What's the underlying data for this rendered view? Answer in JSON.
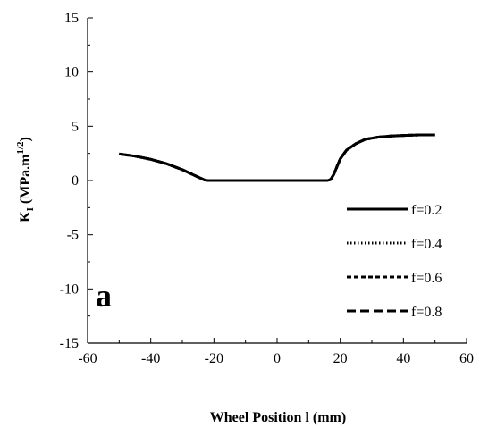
{
  "chart_data": {
    "type": "line",
    "title": "",
    "panel_label": "a",
    "xlabel": "Wheel Position l (mm)",
    "ylabel": {
      "main": "K",
      "sub": "I",
      "unit_prefix": " (MPa.m",
      "unit_sup": "1/2",
      "unit_suffix": ")"
    },
    "xlim": [
      -60,
      60
    ],
    "ylim": [
      -15,
      15
    ],
    "xticks": [
      -60,
      -40,
      -20,
      0,
      20,
      40,
      60
    ],
    "yticks": [
      -15,
      -10,
      -5,
      0,
      5,
      10,
      15
    ],
    "grid": false,
    "legend_position": "lower-right",
    "series": [
      {
        "name": "f=0.2",
        "dash": "solid",
        "x": [
          -50,
          -45,
          -40,
          -35,
          -30,
          -26,
          -23,
          -22,
          -20,
          -10,
          0,
          10,
          16,
          17,
          18,
          19,
          20,
          22,
          25,
          28,
          32,
          36,
          40,
          45,
          50
        ],
        "y": [
          2.45,
          2.25,
          1.95,
          1.55,
          1.0,
          0.45,
          0.05,
          0.0,
          0.0,
          0.0,
          0.0,
          0.0,
          0.0,
          0.1,
          0.6,
          1.3,
          2.0,
          2.8,
          3.4,
          3.8,
          4.0,
          4.1,
          4.15,
          4.2,
          4.2
        ]
      },
      {
        "name": "f=0.4",
        "dash": "dotted",
        "x": [
          -50,
          -45,
          -40,
          -35,
          -30,
          -26,
          -23,
          -22,
          -20,
          -10,
          0,
          10,
          16,
          17,
          18,
          19,
          20,
          22,
          25,
          28,
          32,
          36,
          40,
          45,
          50
        ],
        "y": [
          2.45,
          2.25,
          1.95,
          1.55,
          1.0,
          0.45,
          0.05,
          0.0,
          0.0,
          0.0,
          0.0,
          0.0,
          0.0,
          0.1,
          0.6,
          1.3,
          2.0,
          2.8,
          3.4,
          3.8,
          4.0,
          4.1,
          4.15,
          4.2,
          4.2
        ]
      },
      {
        "name": "f=0.6",
        "dash": "short-dash",
        "x": [
          -50,
          -45,
          -40,
          -35,
          -30,
          -26,
          -23,
          -22,
          -20,
          -10,
          0,
          10,
          16,
          17,
          18,
          19,
          20,
          22,
          25,
          28,
          32,
          36,
          40,
          45,
          50
        ],
        "y": [
          2.45,
          2.25,
          1.95,
          1.55,
          1.0,
          0.45,
          0.05,
          0.0,
          0.0,
          0.0,
          0.0,
          0.0,
          0.0,
          0.1,
          0.6,
          1.3,
          2.0,
          2.8,
          3.4,
          3.8,
          4.0,
          4.1,
          4.15,
          4.2,
          4.2
        ]
      },
      {
        "name": "f=0.8",
        "dash": "long-dash",
        "x": [
          -50,
          -45,
          -40,
          -35,
          -30,
          -26,
          -23,
          -22,
          -20,
          -10,
          0,
          10,
          16,
          17,
          18,
          19,
          20,
          22,
          25,
          28,
          32,
          36,
          40,
          45,
          50
        ],
        "y": [
          2.45,
          2.25,
          1.95,
          1.55,
          1.0,
          0.45,
          0.05,
          0.0,
          0.0,
          0.0,
          0.0,
          0.0,
          0.0,
          0.1,
          0.6,
          1.3,
          2.0,
          2.8,
          3.4,
          3.8,
          4.0,
          4.1,
          4.15,
          4.2,
          4.2
        ]
      }
    ]
  }
}
